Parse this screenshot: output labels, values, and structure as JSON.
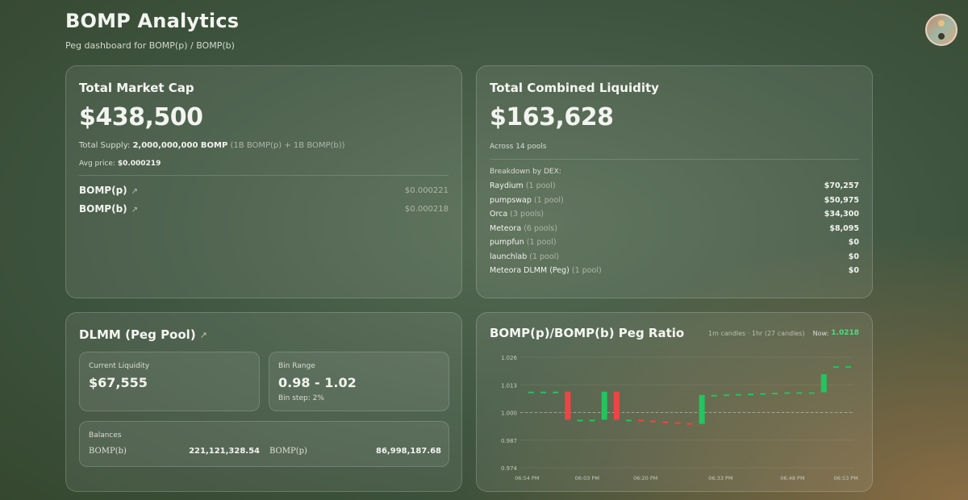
{
  "header": {
    "title": "BOMP Analytics",
    "subtitle": "Peg dashboard for BOMP(p) / BOMP(b)"
  },
  "market_cap": {
    "title": "Total Market Cap",
    "value": "$438,500",
    "supply_label": "Total Supply:",
    "supply_value": "2,000,000,000 BOMP",
    "supply_detail": "(1B BOMP(p) + 1B BOMP(b))",
    "avg_label": "Avg price:",
    "avg_value": "$0.000219",
    "tokens": [
      {
        "name": "BOMP(p)",
        "price": "$0.000221"
      },
      {
        "name": "BOMP(b)",
        "price": "$0.000218"
      }
    ]
  },
  "liquidity": {
    "title": "Total Combined Liquidity",
    "value": "$163,628",
    "pools_text": "Across 14 pools",
    "breakdown_label": "Breakdown by DEX:",
    "dexes": [
      {
        "name": "Raydium",
        "pools": "(1 pool)",
        "value": "$70,257"
      },
      {
        "name": "pumpswap",
        "pools": "(1 pool)",
        "value": "$50,975"
      },
      {
        "name": "Orca",
        "pools": "(3 pools)",
        "value": "$34,300"
      },
      {
        "name": "Meteora",
        "pools": "(6 pools)",
        "value": "$8,095"
      },
      {
        "name": "pumpfun",
        "pools": "(1 pool)",
        "value": "$0"
      },
      {
        "name": "launchlab",
        "pools": "(1 pool)",
        "value": "$0"
      },
      {
        "name": "Meteora DLMM (Peg)",
        "pools": "(1 pool)",
        "value": "$0"
      }
    ]
  },
  "dlmm": {
    "title": "DLMM (Peg Pool)",
    "current_liquidity_label": "Current Liquidity",
    "current_liquidity_value": "$67,555",
    "bin_range_label": "Bin Range",
    "bin_range_value": "0.98 - 1.02",
    "bin_step": "Bin step: 2%",
    "balances_label": "Balances",
    "balances": [
      {
        "token": "BOMP(b)",
        "amount": "221,121,328.54"
      },
      {
        "token": "BOMP(p)",
        "amount": "86,998,187.68"
      }
    ]
  },
  "peg": {
    "title": "BOMP(p)/BOMP(b) Peg Ratio",
    "candles_info": "1m candles · 1hr (27 candles)",
    "now_label": "Now:",
    "now_value": "1.0218"
  },
  "colors": {
    "up": "#22c55e",
    "down": "#ef4444",
    "now": "#4ade80"
  },
  "chart_data": {
    "type": "candlestick",
    "title": "BOMP(p)/BOMP(b) Peg Ratio",
    "ylim": [
      0.974,
      1.026
    ],
    "yticks": [
      "1.026",
      "1.013",
      "1.000",
      "0.987",
      "0.974"
    ],
    "xticks": [
      "06:54 PM",
      "06:03 PM",
      "06:20 PM",
      "06:33 PM",
      "06:48 PM",
      "06:53 PM"
    ],
    "reference_line": 1.0,
    "candles": [
      {
        "open": 1.0098,
        "close": 1.0098
      },
      {
        "open": 1.0098,
        "close": 1.0098
      },
      {
        "open": 1.0098,
        "close": 1.0098
      },
      {
        "open": 1.0098,
        "close": 0.9966
      },
      {
        "open": 0.9966,
        "close": 0.9966
      },
      {
        "open": 0.9966,
        "close": 0.9966
      },
      {
        "open": 0.9966,
        "close": 1.0098
      },
      {
        "open": 1.0098,
        "close": 0.9966
      },
      {
        "open": 0.9966,
        "close": 0.9966
      },
      {
        "open": 0.9966,
        "close": 0.9962
      },
      {
        "open": 0.9962,
        "close": 0.9958
      },
      {
        "open": 0.9958,
        "close": 0.9954
      },
      {
        "open": 0.9954,
        "close": 0.995
      },
      {
        "open": 0.995,
        "close": 0.9946
      },
      {
        "open": 0.9946,
        "close": 1.0083
      },
      {
        "open": 1.0083,
        "close": 1.0083
      },
      {
        "open": 1.0085,
        "close": 1.0085
      },
      {
        "open": 1.0087,
        "close": 1.0087
      },
      {
        "open": 1.0089,
        "close": 1.0089
      },
      {
        "open": 1.0091,
        "close": 1.0091
      },
      {
        "open": 1.0093,
        "close": 1.0093
      },
      {
        "open": 1.0095,
        "close": 1.0095
      },
      {
        "open": 1.0095,
        "close": 1.0095
      },
      {
        "open": 1.0095,
        "close": 1.0095
      },
      {
        "open": 1.0095,
        "close": 1.018
      },
      {
        "open": 1.0218,
        "close": 1.0218
      },
      {
        "open": 1.0218,
        "close": 1.0218
      }
    ]
  }
}
